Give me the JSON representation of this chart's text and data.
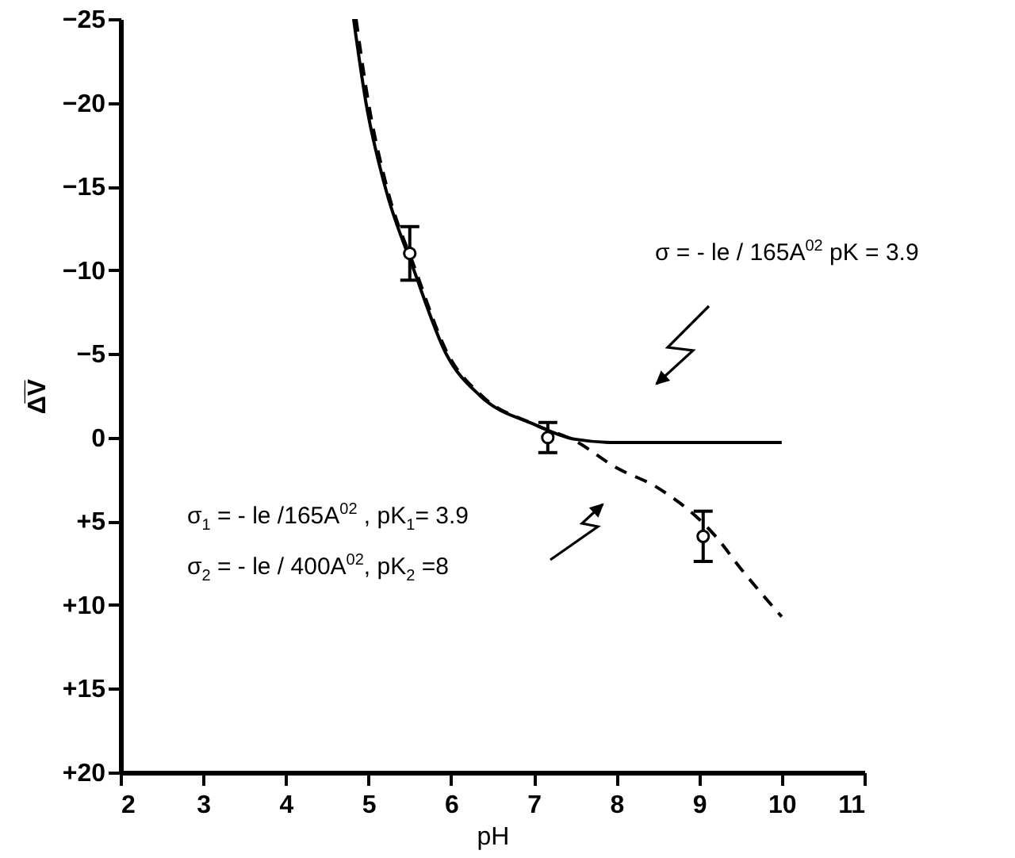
{
  "chart_data": {
    "type": "line",
    "xlabel": "pH",
    "ylabel": "Δ̅V̅",
    "xlim": [
      2,
      11
    ],
    "xticks": [
      2,
      3,
      4,
      5,
      6,
      7,
      8,
      9,
      10,
      11
    ],
    "ylim": [
      20,
      -25
    ],
    "yticks": [
      {
        "value": -25,
        "label": "−25"
      },
      {
        "value": -20,
        "label": "−20"
      },
      {
        "value": -15,
        "label": "−15"
      },
      {
        "value": -10,
        "label": "−10"
      },
      {
        "value": -5,
        "label": "−5"
      },
      {
        "value": 0,
        "label": "0"
      },
      {
        "value": 5,
        "label": "+5"
      },
      {
        "value": 10,
        "label": "+10"
      },
      {
        "value": 15,
        "label": "+15"
      },
      {
        "value": 20,
        "label": "+20"
      }
    ],
    "series": [
      {
        "line_style": "solid",
        "color": "#000000",
        "x": [
          4.82,
          4.97,
          5.2,
          5.55,
          5.94,
          6.35,
          7.0,
          7.5,
          8.0,
          10.0
        ],
        "values": [
          -25,
          -20,
          -15,
          -10,
          -5,
          -2.5,
          -0.8,
          0.1,
          0.3,
          0.3
        ]
      },
      {
        "line_style": "dashed",
        "color": "#000000",
        "x": [
          4.85,
          5.0,
          5.22,
          5.57,
          5.96,
          6.37,
          7.0,
          7.5,
          8.0,
          8.5,
          9.2,
          9.5,
          10.0
        ],
        "values": [
          -25,
          -20,
          -15,
          -10,
          -5,
          -2.5,
          -0.8,
          0.2,
          1.8,
          3.0,
          5.9,
          7.8,
          10.7
        ]
      },
      {
        "type": "scatter",
        "marker": "circle",
        "color": "#000000",
        "x": [
          5.5,
          7.17,
          9.05
        ],
        "values": [
          -11,
          0,
          5.9
        ],
        "errors": [
          1.6,
          0.9,
          1.5
        ]
      }
    ],
    "annotations": [
      "σ = - le / 165A$^{02}$ pK = 3.9",
      "σ$_{1}$ = - le /165A$^{02}$ , pK$_{1}$= 3.9",
      "σ$_{2}$ = - le / 400A$^{02}$, pK$_{2}$ =8"
    ],
    "grid": false
  }
}
